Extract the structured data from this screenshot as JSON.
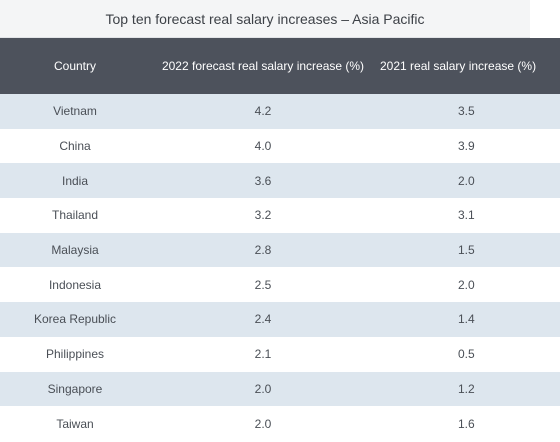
{
  "chart_data": {
    "type": "table",
    "title": "Top ten forecast real salary increases – Asia Pacific",
    "columns": [
      "Country",
      "2022 forecast real salary increase (%)",
      "2021 real salary increase (%)"
    ],
    "rows": [
      {
        "country": "Vietnam",
        "y2022": "4.2",
        "y2021": "3.5"
      },
      {
        "country": "China",
        "y2022": "4.0",
        "y2021": "3.9"
      },
      {
        "country": "India",
        "y2022": "3.6",
        "y2021": "2.0"
      },
      {
        "country": "Thailand",
        "y2022": "3.2",
        "y2021": "3.1"
      },
      {
        "country": "Malaysia",
        "y2022": "2.8",
        "y2021": "1.5"
      },
      {
        "country": "Indonesia",
        "y2022": "2.5",
        "y2021": "2.0"
      },
      {
        "country": "Korea Republic",
        "y2022": "2.4",
        "y2021": "1.4"
      },
      {
        "country": "Philippines",
        "y2022": "2.1",
        "y2021": "0.5"
      },
      {
        "country": "Singapore",
        "y2022": "2.0",
        "y2021": "1.2"
      },
      {
        "country": "Taiwan",
        "y2022": "2.0",
        "y2021": "1.6"
      }
    ]
  },
  "colors": {
    "header_bg": "#4d525c",
    "stripe_bg": "#dde6ee",
    "title_bg": "#f4f5f6"
  }
}
